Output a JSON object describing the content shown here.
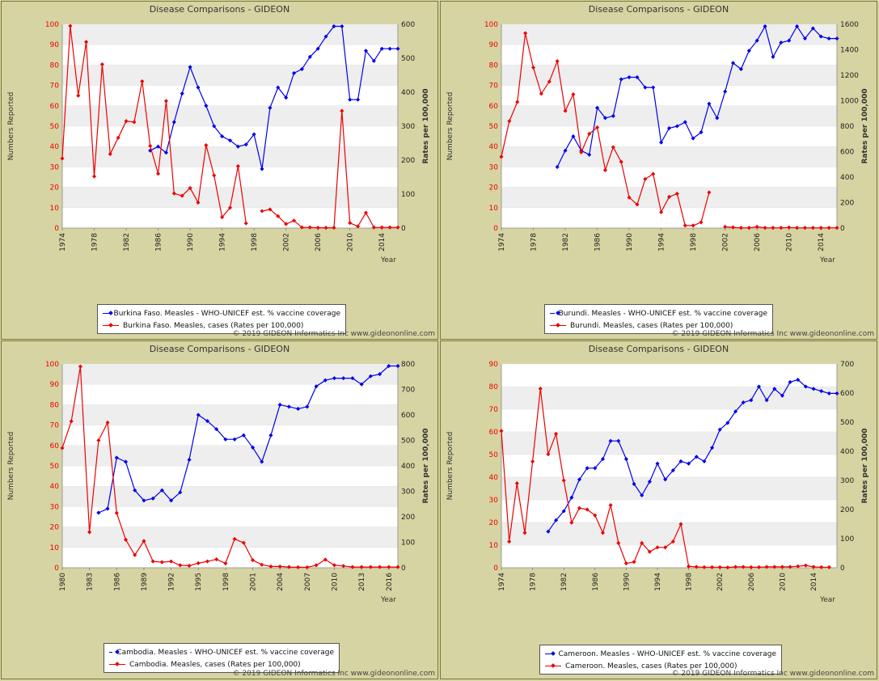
{
  "copyright": "© 2019 GIDEON Informatics Inc www.gideononline.com",
  "colors": {
    "coverage": "#0000ee",
    "cases": "#ee0000",
    "panel_bg": "#d6d4a2",
    "plot_band": "#eeeeee"
  },
  "chart_data": [
    {
      "type": "line",
      "title": "Disease Comparisons - GIDEON",
      "ylabel": "Numbers Reported",
      "y2label": "Rates per 100,000",
      "xlabel": "Year",
      "xlim": [
        1974,
        2016
      ],
      "xticks": [
        1974,
        1978,
        1982,
        1986,
        1990,
        1994,
        1998,
        2002,
        2006,
        2010,
        2014
      ],
      "ylim": [
        0,
        100
      ],
      "yticks": [
        0,
        10,
        20,
        30,
        40,
        50,
        60,
        70,
        80,
        90,
        100
      ],
      "y2lim": [
        0,
        600
      ],
      "y2ticks": [
        0,
        100,
        200,
        300,
        400,
        500,
        600
      ],
      "series": [
        {
          "name": "Burkina Faso. Measles - WHO-UNICEF est. % vaccine coverage",
          "axis": "left",
          "color": "#0000ee",
          "x": [
            1985,
            1986,
            1987,
            1988,
            1989,
            1990,
            1991,
            1992,
            1993,
            1994,
            1995,
            1996,
            1997,
            1998,
            1999,
            2000,
            2001,
            2002,
            2003,
            2004,
            2005,
            2006,
            2007,
            2008,
            2009,
            2010,
            2011,
            2012,
            2013,
            2014,
            2015,
            2016
          ],
          "y": [
            38,
            40,
            37,
            52,
            66,
            79,
            69,
            60,
            50,
            45,
            43,
            40,
            41,
            46,
            29,
            59,
            69,
            64,
            76,
            78,
            84,
            88,
            94,
            99,
            99,
            63,
            63,
            87,
            82,
            88,
            88,
            88
          ]
        },
        {
          "name": "Burkina Faso. Measles, cases (Rates per 100,000)",
          "axis": "right",
          "color": "#ee0000",
          "x": [
            1974,
            1975,
            1976,
            1977,
            1978,
            1979,
            1980,
            1981,
            1982,
            1983,
            1984,
            1985,
            1986,
            1987,
            1988,
            1989,
            1990,
            1991,
            1992,
            1993,
            1994,
            1995,
            1996,
            1997,
            null,
            1999,
            2000,
            2001,
            2002,
            2003,
            2004,
            2005,
            2006,
            2007,
            2008,
            2009,
            2010,
            2011,
            2012,
            2013,
            2014,
            2015,
            2016
          ],
          "y": [
            205,
            595,
            390,
            548,
            152,
            482,
            218,
            266,
            315,
            312,
            432,
            242,
            160,
            374,
            102,
            95,
            118,
            75,
            244,
            155,
            32,
            60,
            182,
            14,
            null,
            50,
            55,
            35,
            12,
            22,
            2,
            2,
            1,
            1,
            1,
            345,
            15,
            5,
            45,
            2,
            2,
            2,
            2
          ]
        }
      ],
      "legend": [
        "Burkina Faso. Measles - WHO-UNICEF est. % vaccine coverage",
        "Burkina Faso. Measles, cases (Rates per 100,000)"
      ]
    },
    {
      "type": "line",
      "title": "Disease Comparisons - GIDEON",
      "ylabel": "Numbers Reported",
      "y2label": "Rates per 100,000",
      "xlabel": "Year",
      "xlim": [
        1974,
        2016
      ],
      "xticks": [
        1974,
        1978,
        1982,
        1986,
        1990,
        1994,
        1998,
        2002,
        2006,
        2010,
        2014
      ],
      "ylim": [
        0,
        100
      ],
      "yticks": [
        0,
        10,
        20,
        30,
        40,
        50,
        60,
        70,
        80,
        90,
        100
      ],
      "y2lim": [
        0,
        1600
      ],
      "y2ticks": [
        0,
        200,
        400,
        600,
        800,
        1000,
        1200,
        1400,
        1600
      ],
      "series": [
        {
          "name": "Burundi. Measles - WHO-UNICEF est. % vaccine coverage",
          "axis": "left",
          "color": "#0000ee",
          "x": [
            1981,
            1982,
            1983,
            1984,
            1985,
            1986,
            1987,
            1988,
            1989,
            1990,
            1991,
            1992,
            1993,
            1994,
            1995,
            1996,
            1997,
            1998,
            1999,
            2000,
            2001,
            2002,
            2003,
            2004,
            2005,
            2006,
            2007,
            2008,
            2009,
            2010,
            2011,
            2012,
            2013,
            2014,
            2015,
            2016
          ],
          "y": [
            30,
            38,
            45,
            38,
            36,
            59,
            54,
            55,
            73,
            74,
            74,
            69,
            69,
            42,
            49,
            50,
            52,
            44,
            47,
            61,
            54,
            67,
            81,
            78,
            87,
            92,
            99,
            84,
            91,
            92,
            99,
            93,
            98,
            94,
            93,
            93
          ]
        },
        {
          "name": "Burundi. Measles, cases (Rates per 100,000)",
          "axis": "right",
          "color": "#ee0000",
          "x": [
            1974,
            1975,
            1976,
            1977,
            1978,
            1979,
            1980,
            1981,
            1982,
            1983,
            1984,
            1985,
            1986,
            1987,
            1988,
            1989,
            1990,
            1991,
            1992,
            1993,
            1994,
            1995,
            1996,
            1997,
            1998,
            1999,
            2000,
            null,
            2002,
            2003,
            2004,
            2005,
            2006,
            2007,
            2008,
            2009,
            2010,
            2011,
            2012,
            2013,
            2014,
            2015,
            2016
          ],
          "y": [
            560,
            840,
            990,
            1530,
            1260,
            1055,
            1150,
            1310,
            920,
            1050,
            595,
            740,
            790,
            455,
            635,
            520,
            240,
            185,
            385,
            425,
            125,
            245,
            270,
            20,
            20,
            45,
            280,
            null,
            10,
            6,
            2,
            2,
            10,
            2,
            2,
            2,
            5,
            2,
            2,
            2,
            2,
            2,
            2
          ]
        }
      ],
      "legend": [
        "Burundi. Measles - WHO-UNICEF est. % vaccine coverage",
        "Burundi. Measles, cases (Rates per 100,000)"
      ]
    },
    {
      "type": "line",
      "title": "Disease Comparisons - GIDEON",
      "ylabel": "Numbers Reported",
      "y2label": "Rates per 100,000",
      "xlabel": "Year",
      "xlim": [
        1980,
        2017
      ],
      "xticks": [
        1980,
        1983,
        1986,
        1989,
        1992,
        1995,
        1998,
        2001,
        2004,
        2007,
        2010,
        2013,
        2016
      ],
      "ylim": [
        0,
        100
      ],
      "yticks": [
        0,
        10,
        20,
        30,
        40,
        50,
        60,
        70,
        80,
        90,
        100
      ],
      "y2lim": [
        0,
        800
      ],
      "y2ticks": [
        0,
        100,
        200,
        300,
        400,
        500,
        600,
        700,
        800
      ],
      "series": [
        {
          "name": "Cambodia. Measles - WHO-UNICEF est. % vaccine coverage",
          "axis": "left",
          "color": "#0000ee",
          "x": [
            1984,
            1985,
            1986,
            1987,
            1988,
            1989,
            1990,
            1991,
            1992,
            1993,
            1994,
            1995,
            1996,
            1997,
            1998,
            1999,
            2000,
            2001,
            2002,
            2003,
            2004,
            2005,
            2006,
            2007,
            2008,
            2009,
            2010,
            2011,
            2012,
            2013,
            2014,
            2015,
            2016,
            2017
          ],
          "y": [
            27,
            29,
            54,
            52,
            38,
            33,
            34,
            38,
            33,
            37,
            53,
            75,
            72,
            68,
            63,
            63,
            65,
            59,
            52,
            65,
            80,
            79,
            78,
            79,
            89,
            92,
            93,
            93,
            93,
            90,
            94,
            95,
            99,
            99
          ]
        },
        {
          "name": "Cambodia. Measles, cases (Rates per 100,000)",
          "axis": "right",
          "color": "#ee0000",
          "x": [
            1980,
            1981,
            1982,
            1983,
            1984,
            1985,
            1986,
            1987,
            1988,
            1989,
            1990,
            1991,
            1992,
            1993,
            1994,
            1995,
            1996,
            1997,
            1998,
            1999,
            2000,
            2001,
            2002,
            2003,
            2004,
            2005,
            2006,
            2007,
            2008,
            2009,
            2010,
            2011,
            2012,
            2013,
            2014,
            2015,
            2016,
            2017
          ],
          "y": [
            470,
            575,
            790,
            140,
            500,
            570,
            215,
            110,
            50,
            105,
            25,
            22,
            25,
            10,
            8,
            18,
            25,
            33,
            17,
            113,
            98,
            30,
            12,
            5,
            5,
            3,
            2,
            2,
            10,
            32,
            10,
            7,
            3,
            3,
            3,
            3,
            3,
            3
          ]
        }
      ],
      "legend": [
        "Cambodia. Measles - WHO-UNICEF est. % vaccine coverage",
        "Cambodia. Measles, cases (Rates per 100,000)"
      ]
    },
    {
      "type": "line",
      "title": "Disease Comparisons - GIDEON",
      "ylabel": "Numbers Reported",
      "y2label": "Rates per 100,000",
      "xlabel": "Year",
      "xlim": [
        1974,
        2017
      ],
      "xticks": [
        1974,
        1978,
        1982,
        1986,
        1990,
        1994,
        1998,
        2002,
        2006,
        2010,
        2014
      ],
      "ylim": [
        0,
        90
      ],
      "yticks": [
        0,
        10,
        20,
        30,
        40,
        50,
        60,
        70,
        80,
        90
      ],
      "y2lim": [
        0,
        700
      ],
      "y2ticks": [
        0,
        100,
        200,
        300,
        400,
        500,
        600,
        700
      ],
      "series": [
        {
          "name": "Cameroon. Measles - WHO-UNICEF est. % vaccine coverage",
          "axis": "left",
          "color": "#0000ee",
          "x": [
            1980,
            1981,
            1982,
            1983,
            1984,
            1985,
            1986,
            1987,
            1988,
            1989,
            1990,
            1991,
            1992,
            1993,
            1994,
            1995,
            1996,
            1997,
            1998,
            1999,
            2000,
            2001,
            2002,
            2003,
            2004,
            2005,
            2006,
            2007,
            2008,
            2009,
            2010,
            2011,
            2012,
            2013,
            2014,
            2015,
            2016,
            2017
          ],
          "y": [
            16,
            21,
            25,
            31,
            39,
            44,
            44,
            48,
            56,
            56,
            48,
            37,
            32,
            38,
            46,
            39,
            43,
            47,
            46,
            49,
            47,
            53,
            61,
            64,
            69,
            73,
            74,
            80,
            74,
            79,
            76,
            82,
            83,
            80,
            79,
            78,
            77,
            77
          ]
        },
        {
          "name": "Cameroon. Measles, cases (Rates per 100,000)",
          "axis": "right",
          "color": "#ee0000",
          "x": [
            1974,
            1975,
            1976,
            1977,
            1978,
            1979,
            1980,
            1981,
            1982,
            1983,
            1984,
            1985,
            1986,
            1987,
            1988,
            1989,
            1990,
            1991,
            1992,
            1993,
            1994,
            1995,
            1996,
            1997,
            1998,
            1999,
            2000,
            2001,
            2002,
            2003,
            2004,
            2005,
            2006,
            2007,
            2008,
            2009,
            2010,
            2011,
            2012,
            2013,
            2014,
            2015,
            2016
          ],
          "y": [
            470,
            90,
            290,
            120,
            365,
            615,
            390,
            460,
            300,
            155,
            205,
            200,
            180,
            120,
            215,
            85,
            15,
            20,
            85,
            55,
            70,
            70,
            90,
            150,
            5,
            3,
            2,
            2,
            2,
            1,
            3,
            3,
            2,
            2,
            3,
            3,
            3,
            3,
            5,
            8,
            3,
            2,
            2
          ]
        }
      ],
      "legend": [
        "Cameroon. Measles - WHO-UNICEF est. % vaccine coverage",
        "Cameroon. Measles, cases (Rates per 100,000)"
      ]
    }
  ]
}
